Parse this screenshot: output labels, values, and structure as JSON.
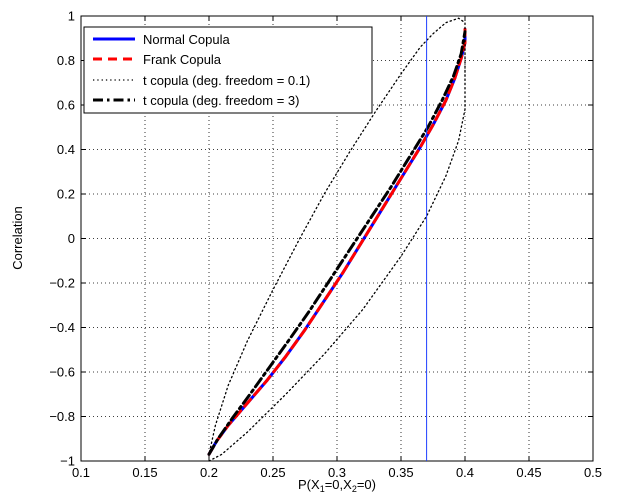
{
  "chart_data": {
    "type": "line",
    "title": "",
    "xlabel_parts": [
      "P(X",
      "1",
      "=0,X",
      "2",
      "=0)"
    ],
    "ylabel": "Correlation",
    "xlim": [
      0.1,
      0.5
    ],
    "ylim": [
      -1,
      1
    ],
    "xticks": [
      0.1,
      0.15,
      0.2,
      0.25,
      0.3,
      0.35,
      0.4,
      0.45,
      0.5
    ],
    "yticks": [
      -1,
      -0.8,
      -0.6,
      -0.4,
      -0.2,
      0,
      0.2,
      0.4,
      0.6,
      0.8,
      1
    ],
    "xtick_labels": [
      "0.1",
      "0.15",
      "0.2",
      "0.25",
      "0.3",
      "0.35",
      "0.4",
      "0.45",
      "0.5"
    ],
    "ytick_labels": [
      "−1",
      "−0.8",
      "−0.6",
      "−0.4",
      "−0.2",
      "0",
      "0.2",
      "0.4",
      "0.6",
      "0.8",
      "1"
    ],
    "grid": true,
    "legend_position": "top-left",
    "vline_x": 0.37,
    "vline_color": "#1f3fff",
    "series": [
      {
        "name": "Normal Copula",
        "color": "#0000ff",
        "dash": "solid",
        "x": [
          0.2,
          0.206,
          0.215,
          0.23,
          0.245,
          0.26,
          0.275,
          0.29,
          0.305,
          0.32,
          0.335,
          0.35,
          0.365,
          0.375,
          0.385,
          0.392,
          0.397,
          0.4,
          0.4
        ],
        "y": [
          -0.97,
          -0.91,
          -0.84,
          -0.74,
          -0.64,
          -0.53,
          -0.41,
          -0.28,
          -0.15,
          -0.01,
          0.13,
          0.27,
          0.41,
          0.51,
          0.62,
          0.72,
          0.81,
          0.88,
          0.94
        ]
      },
      {
        "name": "Frank Copula",
        "color": "#ff0000",
        "dash": "dashed",
        "x": [
          0.2,
          0.206,
          0.215,
          0.23,
          0.245,
          0.26,
          0.275,
          0.29,
          0.305,
          0.32,
          0.335,
          0.35,
          0.365,
          0.375,
          0.385,
          0.392,
          0.397,
          0.4,
          0.4
        ],
        "y": [
          -0.97,
          -0.91,
          -0.84,
          -0.74,
          -0.64,
          -0.53,
          -0.41,
          -0.28,
          -0.15,
          -0.01,
          0.13,
          0.27,
          0.41,
          0.51,
          0.62,
          0.72,
          0.81,
          0.88,
          0.94
        ]
      },
      {
        "name": "t copula (deg. freedom = 0.1)",
        "color": "#000000",
        "dash": "dotted",
        "x": [
          0.2,
          0.21,
          0.23,
          0.26,
          0.29,
          0.32,
          0.35,
          0.37,
          0.385,
          0.395,
          0.4,
          0.4,
          0.395,
          0.385,
          0.375,
          0.365,
          0.35,
          0.33,
          0.31,
          0.29,
          0.27,
          0.25,
          0.23,
          0.215,
          0.205,
          0.2
        ],
        "y": [
          -1.0,
          -0.97,
          -0.87,
          -0.7,
          -0.52,
          -0.32,
          -0.08,
          0.1,
          0.28,
          0.44,
          0.58,
          0.97,
          0.99,
          0.97,
          0.92,
          0.86,
          0.74,
          0.57,
          0.39,
          0.2,
          -0.01,
          -0.23,
          -0.46,
          -0.66,
          -0.84,
          -0.97
        ]
      },
      {
        "name": "t copula (deg. freedom = 3)",
        "color": "#000000",
        "dash": "dashdot",
        "x": [
          0.2,
          0.207,
          0.218,
          0.232,
          0.247,
          0.262,
          0.278,
          0.294,
          0.31,
          0.326,
          0.342,
          0.357,
          0.371,
          0.382,
          0.391,
          0.397,
          0.4
        ],
        "y": [
          -0.97,
          -0.9,
          -0.81,
          -0.7,
          -0.58,
          -0.46,
          -0.33,
          -0.19,
          -0.05,
          0.09,
          0.23,
          0.37,
          0.5,
          0.62,
          0.73,
          0.83,
          0.93
        ]
      }
    ]
  }
}
